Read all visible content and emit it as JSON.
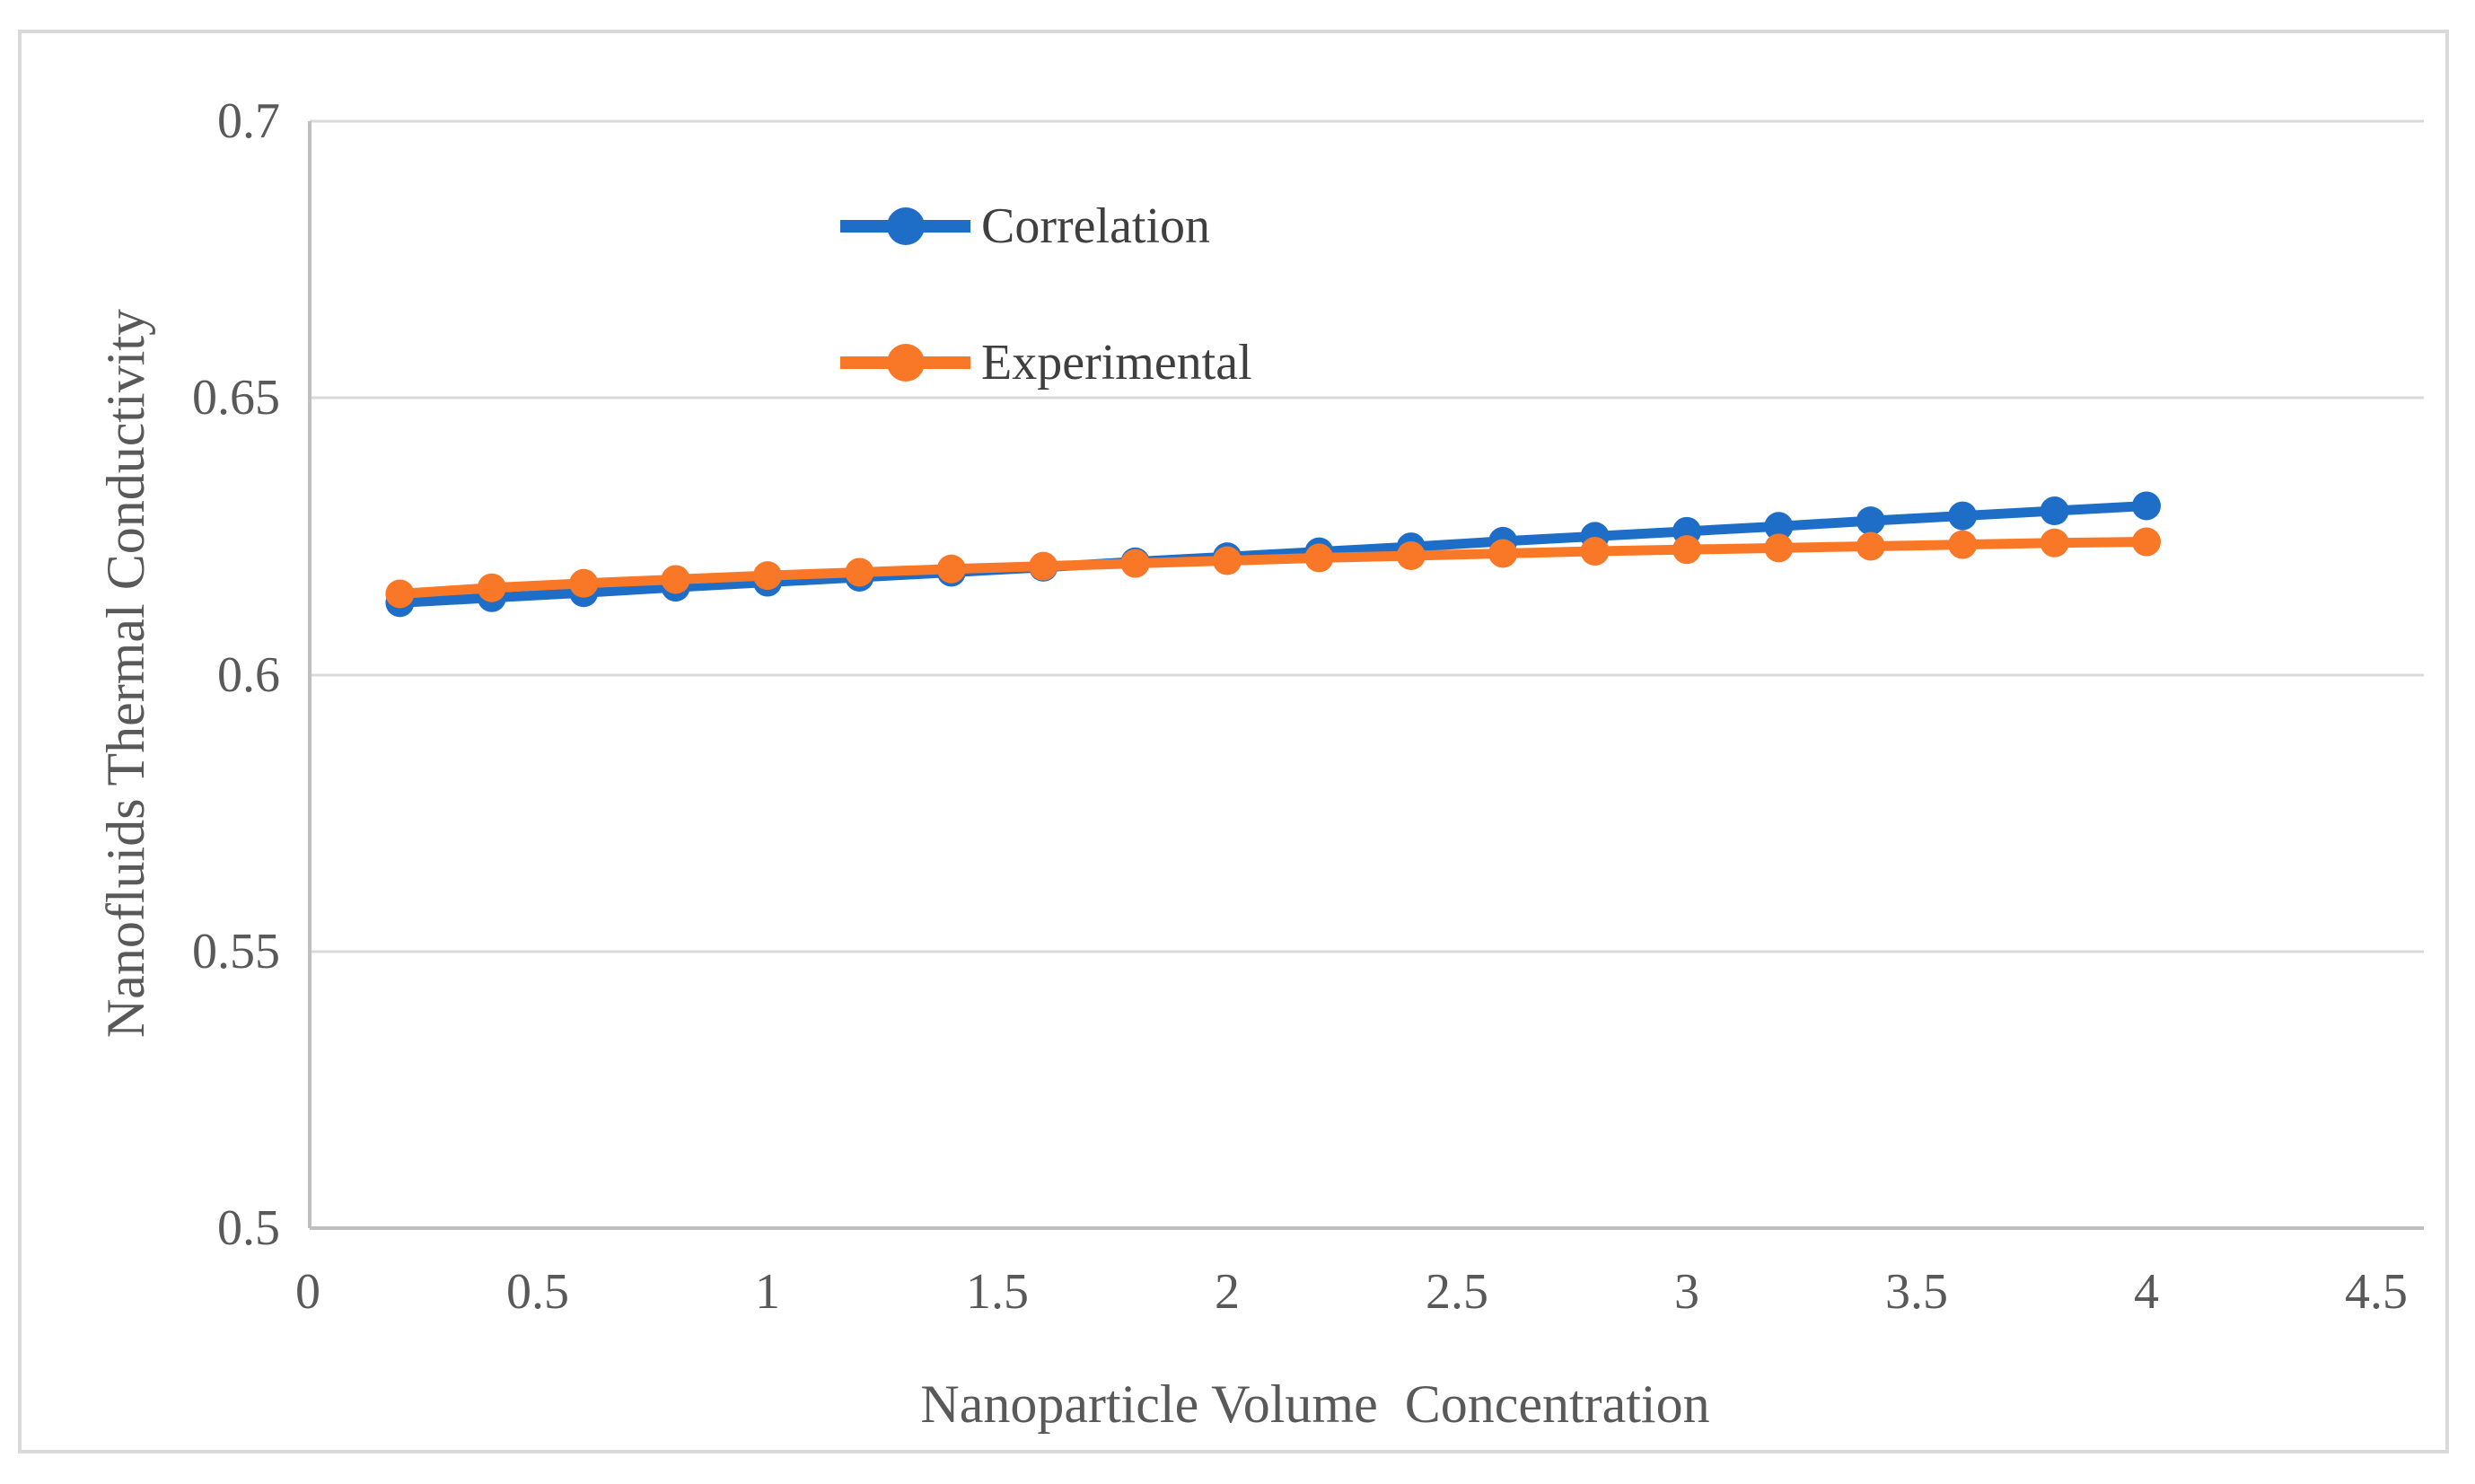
{
  "figure": {
    "background_color": "#ffffff",
    "border_color": "#d9d9d9",
    "gridline_color": "#d9d9d9",
    "axis_line_color": "#bfbfbf",
    "tick_text_color": "#595959",
    "legend_text_color": "#3f3f3f"
  },
  "chart_data": {
    "type": "line",
    "title": "",
    "xlabel": "Nanoparticle Volume  Concentration",
    "ylabel": "Nanofluids Thermal Conductivity",
    "xlim": [
      0,
      4.5
    ],
    "ylim": [
      0.5,
      0.7
    ],
    "grid": "horizontal",
    "legend_position": "inside-upper-left",
    "x_ticks": [
      0,
      0.5,
      1,
      1.5,
      2,
      2.5,
      3,
      3.5,
      4,
      4.5
    ],
    "x_tick_labels": [
      "0",
      "0.5",
      "1",
      "1.5",
      "2",
      "2.5",
      "3",
      "3.5",
      "4",
      "4.5"
    ],
    "y_ticks": [
      0.7,
      0.65,
      0.6,
      0.55,
      0.5
    ],
    "y_tick_labels": [
      "0.7",
      "0.65",
      "0.6",
      "0.55",
      "0.5"
    ],
    "x": [
      0.2,
      0.4,
      0.6,
      0.8,
      1.0,
      1.2,
      1.4,
      1.6,
      1.8,
      2.0,
      2.2,
      2.4,
      2.6,
      2.8,
      3.0,
      3.2,
      3.4,
      3.6,
      3.8,
      4.0
    ],
    "series": [
      {
        "name": "Correlation",
        "color": "#1e6ec8",
        "marker": "circle",
        "values": [
          0.613,
          0.6139,
          0.6148,
          0.6158,
          0.6167,
          0.6176,
          0.6185,
          0.6194,
          0.6204,
          0.6213,
          0.6222,
          0.6231,
          0.6241,
          0.625,
          0.6259,
          0.6268,
          0.6278,
          0.6287,
          0.6296,
          0.6305
        ]
      },
      {
        "name": "Experimental",
        "color": "#f87828",
        "marker": "circle",
        "values": [
          0.6146,
          0.6157,
          0.6165,
          0.6172,
          0.6179,
          0.6185,
          0.6191,
          0.6196,
          0.6201,
          0.6206,
          0.6211,
          0.6215,
          0.6219,
          0.6223,
          0.6226,
          0.6229,
          0.6232,
          0.6235,
          0.6238,
          0.624
        ]
      }
    ]
  }
}
